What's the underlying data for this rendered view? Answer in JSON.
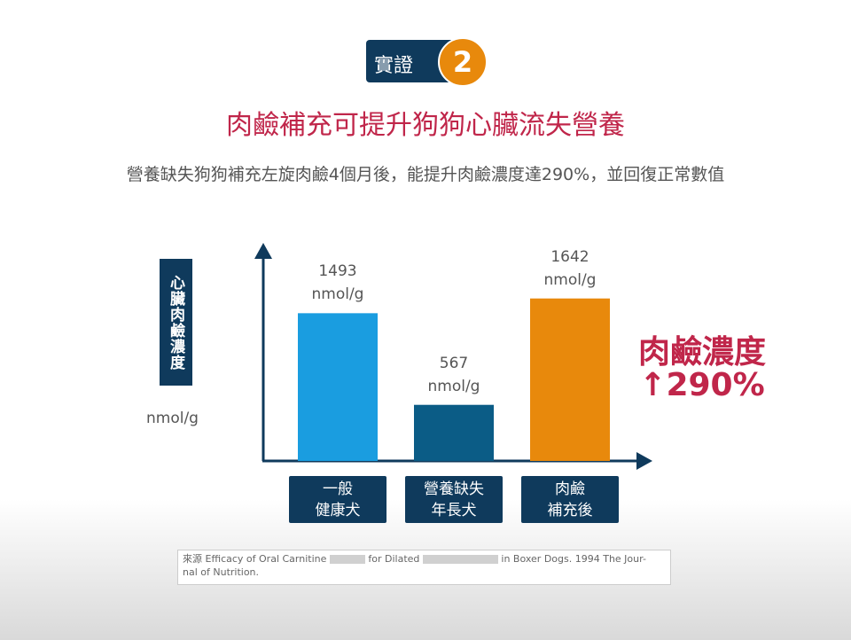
{
  "badge": {
    "label": "實證",
    "number": "2"
  },
  "chart_data": {
    "type": "bar",
    "title": "肉鹼補充可提升狗狗心臟流失營養",
    "subtitle": "營養缺失狗狗補充左旋肉鹼4個月後，能提升肉鹼濃度達290%，並回復正常數值",
    "y_label": "心臟肉鹼濃度",
    "y_unit": "nmol/g",
    "categories": [
      "一般\n健康犬",
      "營養缺失\n年長犬",
      "肉鹼\n補充後"
    ],
    "values": [
      1493,
      567,
      1642
    ],
    "value_labels": [
      "1493\nnmol/g",
      "567\nnmol/g",
      "1642\nnmol/g"
    ],
    "colors": [
      "#1a9de0",
      "#0b5c86",
      "#e8890c"
    ],
    "ylim": [
      0,
      2150
    ],
    "annotation": {
      "line1": "肉鹼濃度",
      "line2": "↑290%"
    }
  },
  "source": {
    "part1": "來源 Efficacy of Oral Carnitine",
    "part2": "for Dilated",
    "part3": "in Boxer Dogs. 1994 The Jour-\nnal of Nutrition."
  }
}
